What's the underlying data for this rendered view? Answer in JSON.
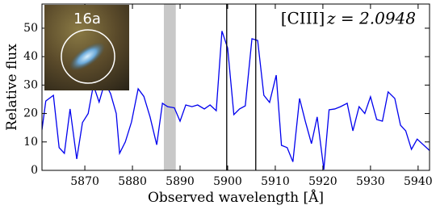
{
  "chart_data": {
    "type": "line",
    "xlabel": "Observed wavelength [Å]",
    "ylabel": "Relative flux",
    "annotation": "[CIII]",
    "redshift_label": "z = 2.0948",
    "inset_label": "16a",
    "x": [
      5861.0,
      5861.8,
      5863.4,
      5864.6,
      5865.7,
      5866.9,
      5868.3,
      5869.5,
      5870.7,
      5871.8,
      5873.0,
      5874.2,
      5875.4,
      5876.6,
      5877.3,
      5878.5,
      5879.8,
      5881.2,
      5882.4,
      5883.7,
      5885.1,
      5886.3,
      5887.4,
      5888.8,
      5890.0,
      5891.2,
      5892.5,
      5893.7,
      5895.1,
      5896.3,
      5897.6,
      5898.8,
      5900.0,
      5901.3,
      5902.5,
      5903.7,
      5905.1,
      5906.3,
      5907.6,
      5908.8,
      5910.2,
      5911.3,
      5912.5,
      5913.7,
      5915.1,
      5916.3,
      5917.6,
      5918.8,
      5920.2,
      5921.3,
      5922.5,
      5923.7,
      5925.1,
      5926.3,
      5927.6,
      5928.8,
      5930.0,
      5931.3,
      5932.5,
      5933.7,
      5935.1,
      5936.3,
      5937.4,
      5938.6,
      5939.8,
      5942.4
    ],
    "series": [
      {
        "color": "#0000ee",
        "values": [
          14.3,
          24.4,
          26.4,
          8,
          6,
          21.6,
          4,
          16.8,
          20,
          30,
          24,
          31,
          27,
          20,
          6,
          10,
          17,
          28.7,
          26,
          18.8,
          9,
          23.6,
          22.4,
          22,
          17.3,
          23,
          22.4,
          23,
          21.6,
          23,
          21,
          49,
          43,
          19.6,
          21.6,
          22.7,
          46.3,
          45.7,
          26.4,
          23.9,
          33.5,
          8.8,
          8,
          3,
          25.3,
          17.3,
          9.4,
          18.8,
          0.3,
          21.3,
          21.6,
          22.4,
          23.6,
          13.9,
          22.4,
          20,
          25.9,
          17.9,
          17.3,
          27.6,
          25.3,
          15.9,
          13.9,
          7.4,
          11,
          7
        ]
      }
    ],
    "vlines": [
      5899.8,
      5905.9
    ],
    "shaded_band": [
      5886.6,
      5889.1
    ],
    "xlim": [
      5861,
      5942.4
    ],
    "xticks": [
      5870,
      5880,
      5890,
      5900,
      5910,
      5920,
      5930,
      5940
    ],
    "ylim": [
      0,
      58.5
    ],
    "yticks": [
      0,
      10,
      20,
      30,
      40,
      50
    ]
  }
}
